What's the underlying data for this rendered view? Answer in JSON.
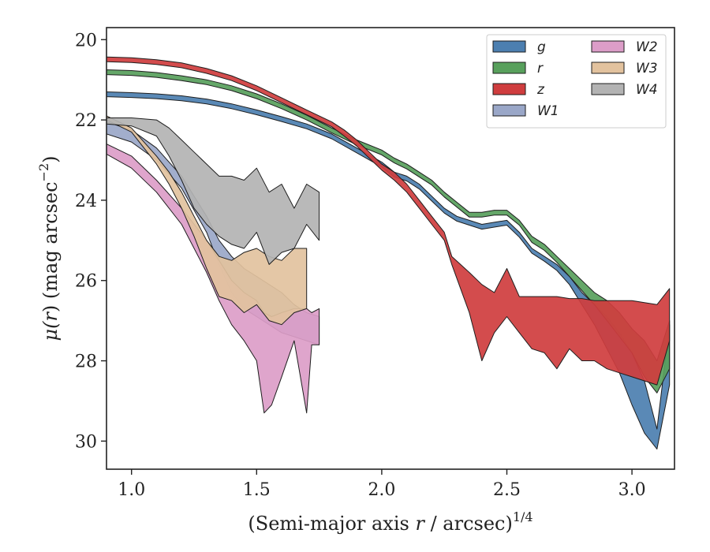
{
  "chart_data": {
    "type": "area",
    "xlabel_main": "(Semi-major axis ",
    "xlabel_var": "r",
    "xlabel_rest": " / arcsec)",
    "xlabel_sup": "1/4",
    "ylabel_main": "μ(",
    "ylabel_var": "r",
    "ylabel_rest": ") (mag arcsec",
    "ylabel_sup": "−2",
    "ylabel_close": ")",
    "xlim": [
      0.9,
      3.17
    ],
    "ylim": [
      30.7,
      19.7
    ],
    "xticks": [
      {
        "value": 1.0,
        "label": "1.0"
      },
      {
        "value": 1.5,
        "label": "1.5"
      },
      {
        "value": 2.0,
        "label": "2.0"
      },
      {
        "value": 2.5,
        "label": "2.5"
      },
      {
        "value": 3.0,
        "label": "3.0"
      }
    ],
    "yticks": [
      {
        "value": 20,
        "label": "20"
      },
      {
        "value": 22,
        "label": "22"
      },
      {
        "value": 24,
        "label": "24"
      },
      {
        "value": 26,
        "label": "26"
      },
      {
        "value": 28,
        "label": "28"
      },
      {
        "value": 30,
        "label": "30"
      }
    ],
    "grid": false,
    "legend_position": "top-right",
    "legend_columns": 2,
    "series": [
      {
        "name": "g",
        "color": "#4c7fb0",
        "x": [
          0.9,
          1.0,
          1.1,
          1.2,
          1.3,
          1.4,
          1.5,
          1.6,
          1.7,
          1.8,
          1.9,
          2.0,
          2.05,
          2.1,
          2.15,
          2.2,
          2.25,
          2.3,
          2.35,
          2.4,
          2.45,
          2.5,
          2.55,
          2.6,
          2.65,
          2.7,
          2.75,
          2.8,
          2.85,
          2.9,
          2.95,
          3.0,
          3.05,
          3.1,
          3.15
        ],
        "lo": [
          21.3,
          21.32,
          21.35,
          21.4,
          21.48,
          21.6,
          21.75,
          21.92,
          22.1,
          22.35,
          22.7,
          23.05,
          23.3,
          23.4,
          23.6,
          23.9,
          24.2,
          24.4,
          24.5,
          24.6,
          24.55,
          24.5,
          24.8,
          25.2,
          25.4,
          25.6,
          25.9,
          26.3,
          26.6,
          26.9,
          27.3,
          27.8,
          28.5,
          29.7,
          27.1
        ],
        "hi": [
          21.42,
          21.44,
          21.47,
          21.52,
          21.6,
          21.72,
          21.87,
          22.04,
          22.22,
          22.47,
          22.82,
          23.17,
          23.42,
          23.52,
          23.72,
          24.02,
          24.32,
          24.52,
          24.62,
          24.72,
          24.67,
          24.62,
          24.92,
          25.32,
          25.52,
          25.75,
          26.1,
          26.6,
          27.1,
          27.7,
          28.3,
          29.1,
          29.8,
          30.2,
          28.6
        ]
      },
      {
        "name": "r",
        "color": "#58a05c",
        "x": [
          0.9,
          1.0,
          1.1,
          1.2,
          1.3,
          1.4,
          1.5,
          1.6,
          1.7,
          1.8,
          1.9,
          2.0,
          2.05,
          2.1,
          2.15,
          2.2,
          2.25,
          2.3,
          2.35,
          2.4,
          2.45,
          2.5,
          2.55,
          2.6,
          2.65,
          2.7,
          2.75,
          2.8,
          2.85,
          2.9,
          2.95,
          3.0,
          3.05,
          3.1,
          3.15
        ],
        "lo": [
          20.75,
          20.77,
          20.82,
          20.9,
          21.0,
          21.15,
          21.35,
          21.6,
          21.88,
          22.2,
          22.5,
          22.75,
          22.95,
          23.1,
          23.3,
          23.5,
          23.8,
          24.05,
          24.3,
          24.3,
          24.25,
          24.25,
          24.5,
          24.9,
          25.1,
          25.4,
          25.7,
          26.0,
          26.3,
          26.5,
          26.8,
          27.2,
          27.5,
          28.0,
          27.0
        ],
        "hi": [
          20.87,
          20.89,
          20.94,
          21.02,
          21.12,
          21.27,
          21.47,
          21.72,
          22.0,
          22.32,
          22.62,
          22.87,
          23.07,
          23.22,
          23.42,
          23.62,
          23.92,
          24.17,
          24.42,
          24.42,
          24.37,
          24.37,
          24.62,
          25.05,
          25.25,
          25.55,
          25.9,
          26.25,
          26.6,
          27.0,
          27.4,
          27.8,
          28.4,
          28.8,
          28.2
        ]
      },
      {
        "name": "z",
        "color": "#cf3d3e",
        "x": [
          0.9,
          1.0,
          1.1,
          1.2,
          1.3,
          1.4,
          1.5,
          1.6,
          1.7,
          1.8,
          1.85,
          1.9,
          1.95,
          2.0,
          2.05,
          2.1,
          2.15,
          2.2,
          2.25,
          2.28,
          2.35,
          2.4,
          2.45,
          2.5,
          2.55,
          2.6,
          2.65,
          2.7,
          2.75,
          2.8,
          2.85,
          2.9,
          2.95,
          3.0,
          3.05,
          3.1,
          3.15
        ],
        "lo": [
          20.43,
          20.45,
          20.5,
          20.58,
          20.72,
          20.9,
          21.15,
          21.45,
          21.75,
          22.05,
          22.25,
          22.5,
          22.8,
          23.1,
          23.3,
          23.6,
          24.0,
          24.4,
          24.8,
          25.4,
          25.8,
          26.1,
          26.3,
          25.7,
          26.4,
          26.4,
          26.4,
          26.4,
          26.45,
          26.45,
          26.5,
          26.5,
          26.5,
          26.5,
          26.55,
          26.6,
          26.2
        ],
        "hi": [
          20.55,
          20.57,
          20.62,
          20.7,
          20.84,
          21.02,
          21.27,
          21.57,
          21.87,
          22.17,
          22.4,
          22.65,
          22.95,
          23.25,
          23.5,
          23.8,
          24.2,
          24.6,
          25.0,
          25.6,
          26.8,
          28.0,
          27.3,
          26.9,
          27.3,
          27.7,
          27.8,
          28.2,
          27.7,
          28.0,
          28.0,
          28.2,
          28.3,
          28.4,
          28.5,
          28.6,
          27.5
        ]
      },
      {
        "name": "W1",
        "color": "#9aa7c8",
        "x": [
          0.9,
          1.0,
          1.1,
          1.2,
          1.3,
          1.35,
          1.4,
          1.45,
          1.5,
          1.55,
          1.6,
          1.65,
          1.7,
          1.75
        ],
        "lo": [
          22.05,
          22.25,
          22.7,
          23.4,
          24.4,
          25.0,
          25.4,
          25.7,
          25.9,
          26.1,
          26.3,
          26.6,
          26.8,
          26.9
        ],
        "hi": [
          22.35,
          22.55,
          23.0,
          23.7,
          24.8,
          25.6,
          26.3,
          26.7,
          26.9,
          27.1,
          27.3,
          27.4,
          27.5,
          27.6
        ]
      },
      {
        "name": "W2",
        "color": "#dc9dc8",
        "x": [
          0.9,
          1.0,
          1.1,
          1.2,
          1.3,
          1.35,
          1.4,
          1.45,
          1.5,
          1.53,
          1.56,
          1.6,
          1.65,
          1.7,
          1.72,
          1.75
        ],
        "lo": [
          22.6,
          22.9,
          23.5,
          24.2,
          25.0,
          25.5,
          26.0,
          26.3,
          26.5,
          26.8,
          26.9,
          26.8,
          26.7,
          26.7,
          26.8,
          26.7
        ],
        "hi": [
          22.85,
          23.2,
          23.8,
          24.6,
          25.8,
          26.5,
          27.1,
          27.5,
          28.0,
          29.3,
          29.1,
          28.4,
          27.5,
          29.3,
          27.6,
          27.6
        ]
      },
      {
        "name": "W3",
        "color": "#e2c29e",
        "x": [
          0.9,
          1.0,
          1.1,
          1.15,
          1.2,
          1.25,
          1.3,
          1.35,
          1.4,
          1.45,
          1.5,
          1.55,
          1.6,
          1.65,
          1.7
        ],
        "lo": [
          21.9,
          22.2,
          22.9,
          23.3,
          23.8,
          24.4,
          25.0,
          25.4,
          25.5,
          25.3,
          25.2,
          25.4,
          25.5,
          25.2,
          25.2
        ],
        "hi": [
          22.0,
          22.3,
          23.1,
          23.6,
          24.2,
          24.9,
          25.7,
          26.4,
          26.5,
          26.8,
          26.6,
          27.0,
          27.1,
          26.8,
          26.7
        ]
      },
      {
        "name": "W4",
        "color": "#b3b3b3",
        "x": [
          0.9,
          1.0,
          1.1,
          1.15,
          1.2,
          1.25,
          1.3,
          1.35,
          1.4,
          1.45,
          1.5,
          1.55,
          1.6,
          1.65,
          1.7,
          1.75
        ],
        "lo": [
          21.95,
          21.95,
          22.0,
          22.2,
          22.5,
          22.8,
          23.1,
          23.4,
          23.4,
          23.5,
          23.2,
          23.8,
          23.6,
          24.2,
          23.6,
          23.8
        ],
        "hi": [
          22.1,
          22.15,
          22.4,
          22.9,
          23.5,
          24.2,
          24.6,
          24.9,
          25.1,
          25.2,
          24.8,
          25.6,
          25.3,
          25.2,
          24.6,
          25.0
        ]
      }
    ]
  }
}
